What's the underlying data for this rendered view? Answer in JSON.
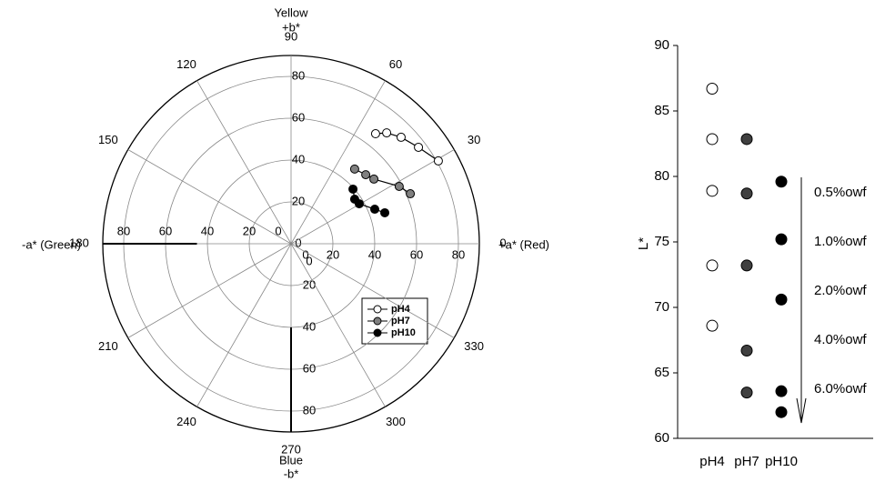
{
  "chart_data": [
    {
      "type": "polar",
      "axis_labels": {
        "top": [
          "Yellow",
          "+b*"
        ],
        "bottom": [
          "Blue",
          "-b*"
        ],
        "left": "-a* (Green)",
        "right": "+a* (Red)"
      },
      "rlim": [
        0,
        90
      ],
      "rticks": [
        0,
        20,
        40,
        60,
        80
      ],
      "angle_ticks": [
        0,
        30,
        60,
        90,
        120,
        150,
        180,
        210,
        240,
        270,
        300,
        330
      ],
      "series": [
        {
          "name": "pH4",
          "color": "#ffffff",
          "x": [
            40.4,
            45.7,
            52.6,
            60.9,
            70.4
          ],
          "values": [
            52.6,
            53.0,
            50.9,
            46.1,
            39.6
          ]
        },
        {
          "name": "pH7",
          "color": "#808080",
          "x": [
            30.4,
            35.7,
            39.6,
            51.7,
            57.0
          ],
          "values": [
            35.7,
            33.0,
            30.9,
            27.4,
            23.9
          ]
        },
        {
          "name": "pH10",
          "color": "#000000",
          "x": [
            29.6,
            30.4,
            32.6,
            40.0,
            44.8
          ],
          "values": [
            26.1,
            21.3,
            19.1,
            16.5,
            14.8
          ]
        }
      ]
    },
    {
      "type": "dot",
      "ylabel": "L*",
      "ylim": [
        60,
        90
      ],
      "yticks": [
        60,
        65,
        70,
        75,
        80,
        85,
        90
      ],
      "annotations": [
        "0.5%owf",
        "1.0%owf",
        "2.0%owf",
        "4.0%owf",
        "6.0%owf"
      ],
      "series": [
        {
          "name": "pH4",
          "color": "#ffffff",
          "values": [
            86.7,
            82.85,
            78.9,
            73.2,
            68.6
          ]
        },
        {
          "name": "pH7",
          "color": "#404040",
          "values": [
            82.85,
            78.7,
            73.2,
            66.7,
            63.5
          ]
        },
        {
          "name": "pH10",
          "color": "#000000",
          "values": [
            79.6,
            75.2,
            70.6,
            63.6,
            62.0
          ]
        }
      ]
    }
  ]
}
